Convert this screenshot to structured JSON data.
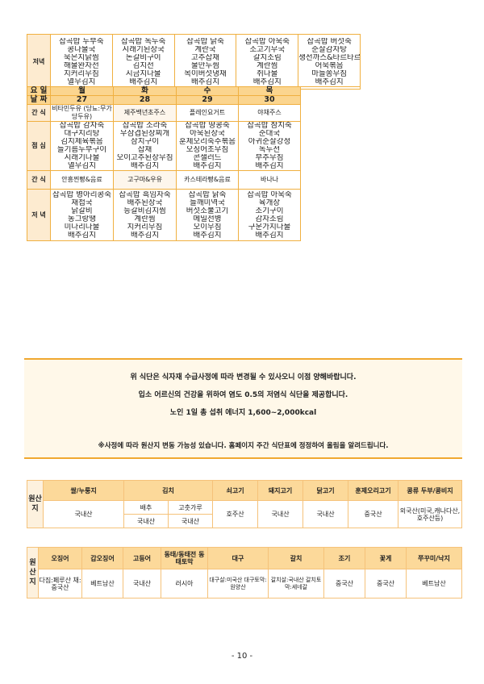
{
  "prev_week_dinner": {
    "label": "저녁",
    "days": [
      [
        "잡곡밥 두부죽",
        "콩나물국",
        "묵은지닭찜",
        "해물완자전",
        "치커리무침",
        "열무김치"
      ],
      [
        "잡곡밥 녹두죽",
        "시래기된장국",
        "돈갈비구이",
        "김치전",
        "시금치나물",
        "배추김치"
      ],
      [
        "잡곡밥 닭죽",
        "계란국",
        "고추잡채",
        "물만두찜",
        "목이버섯냉채",
        "배추김치"
      ],
      [
        "잡곡밥 아욱죽",
        "소고기무국",
        "갈치조림",
        "계란찜",
        "취나물",
        "배추김치"
      ],
      [
        "잡곡밥 버섯죽",
        "순살감자탕",
        "생선까스&타르타르",
        "어묵볶음",
        "마늘쫑무침",
        "배추김치"
      ]
    ]
  },
  "week": {
    "day_label": "요 일",
    "date_label": "날 짜",
    "snack_label": "간 식",
    "lunch_label": "점 심",
    "dinner_label": "저 녁",
    "days": [
      "월",
      "화",
      "수",
      "목"
    ],
    "dates": [
      "27",
      "28",
      "29",
      "30"
    ],
    "am_snack": [
      "비타민두유 (당뇨:무가당두유)",
      "제주백년초주스",
      "플레인요거트",
      "야채주스"
    ],
    "lunch": [
      [
        "잡곡밥 감자죽",
        "대구지리탕",
        "김치제육볶음",
        "들기름두부구이",
        "시래기나물",
        "열무김치"
      ],
      [
        "잡곡밥 소라죽",
        "우삼겹된장찌개",
        "삼치구이",
        "잡채",
        "오이고추된장무침",
        "배추김치"
      ],
      [
        "잡곡밥 땅콩죽",
        "아욱된장국",
        "훈제오리숙주볶음",
        "오징어초무침",
        "콘샐러드",
        "배추김치"
      ],
      [
        "잡곡밥 참치죽",
        "순대국",
        "아귀순살강정",
        "녹두전",
        "부추무침",
        "배추김치"
      ]
    ],
    "pm_snack": [
      "안흥찐빵&음료",
      "고구마&우유",
      "카스테라빵&음료",
      "바나나"
    ],
    "dinner": [
      [
        "잡곡밥 병아리콩죽",
        "재첩국",
        "닭갈비",
        "동그랑땡",
        "미나리나물",
        "배추김치"
      ],
      [
        "잡곡밥 흑임자죽",
        "배추된장국",
        "등갈비김치찜",
        "계란찜",
        "치커리무침",
        "배추김치"
      ],
      [
        "잡곡밥 닭죽",
        "들깨미역국",
        "버섯소불고기",
        "메밀전병",
        "오이무침",
        "배추김치"
      ],
      [
        "잡곡밥 아욱죽",
        "육개장",
        "조기구이",
        "감자조림",
        "구운가지나물",
        "배추김치"
      ]
    ]
  },
  "notice": {
    "line1": "위 식단은 식자재 수급사정에 따라 변경될 수 있사오니 이점 양해바랍니다.",
    "line2": "입소 어르신의 건강을 위하여 염도 0.5의 저염식 식단을 제공합니다.",
    "line3": "노인 1일 총 섭취 에너지 1,600~2,000kcal",
    "line4": "※사정에 따라 원산지 변동 가능성 있습니다. 홈페이지 주간 식단표에 정정하여 올림을 알려드립니다."
  },
  "origin1": {
    "label": "원산지",
    "headers": [
      "쌀/누룽지",
      "김치",
      "쇠고기",
      "돼지고기",
      "닭고기",
      "훈제오리고기",
      "콩류 두부/콩비지"
    ],
    "kimchi_sub": [
      "배추",
      "고춧가루"
    ],
    "kimchi_vals": [
      "국내산",
      "국내산"
    ],
    "values": [
      "국내산",
      "호주산",
      "국내산",
      "국내산",
      "중국산",
      "외국산(미국,캐나다산,호주산등)"
    ]
  },
  "origin2": {
    "label": "원산지",
    "headers": [
      "오징어",
      "갑오징어",
      "고등어",
      "동태/동태전 동태토막",
      "대구",
      "갈치",
      "조기",
      "꽃게",
      "쭈꾸미/낙지"
    ],
    "values": [
      "다짐:페루산 채:중국산",
      "베트남산",
      "국내산",
      "러시아",
      "대구살:미국산 대구토막:원양산",
      "갈치살:국내산 갈치토막:세네갈",
      "중국산",
      "중국산",
      "베트남산"
    ]
  },
  "page_number": "- 10 -"
}
